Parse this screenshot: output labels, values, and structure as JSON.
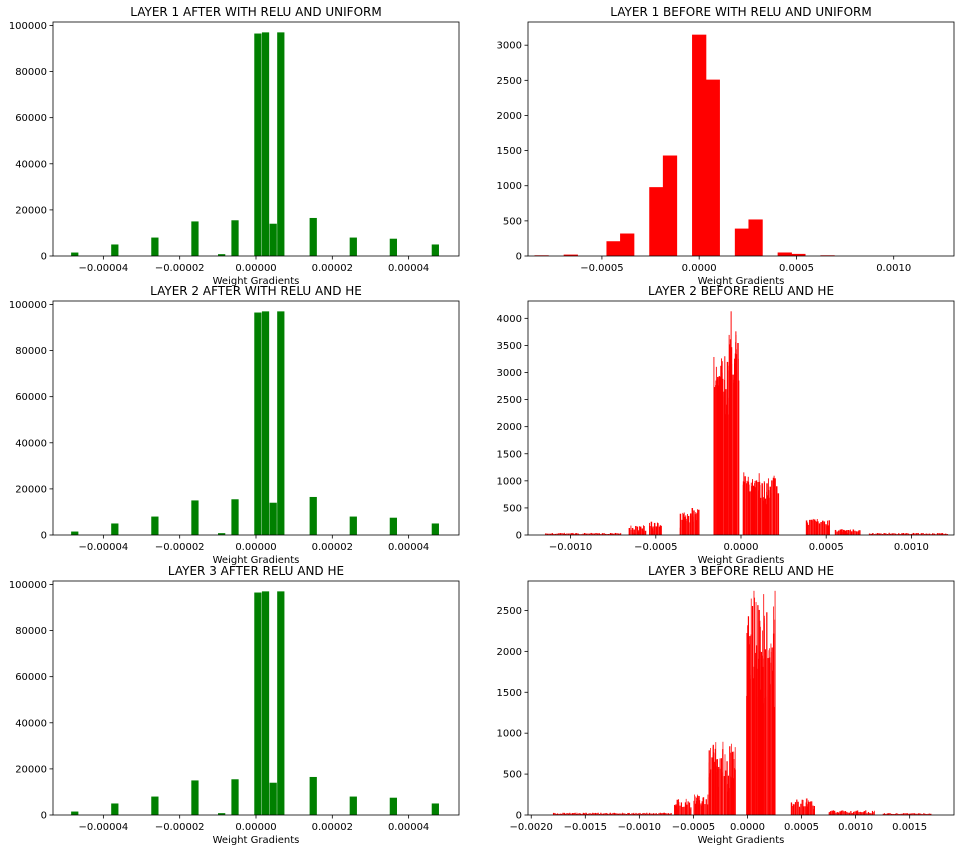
{
  "chart_data": [
    {
      "type": "bar",
      "title": "LAYER 1 AFTER WITH RELU AND UNIFORM",
      "xlabel": "Weight Gradients",
      "ylabel": "",
      "xlim": [
        -5.32e-05,
        5.32e-05
      ],
      "ylim": [
        0,
        101500
      ],
      "xticks": [
        -4e-05,
        -2e-05,
        0.0,
        2e-05,
        4e-05
      ],
      "xtick_labels": [
        "−0.00004",
        "−0.00002",
        "0.00000",
        "0.00002",
        "0.00004"
      ],
      "yticks": [
        0,
        20000,
        40000,
        60000,
        80000,
        100000
      ],
      "ytick_labels": [
        "0",
        "20000",
        "40000",
        "60000",
        "80000",
        "100000"
      ],
      "grid": false,
      "color": "#008000",
      "bin_width": 1.9e-06,
      "bins": [
        {
          "x": -4.75e-05,
          "value": 1500
        },
        {
          "x": -3.7e-05,
          "value": 5000
        },
        {
          "x": -2.65e-05,
          "value": 8000
        },
        {
          "x": -1.6e-05,
          "value": 15000
        },
        {
          "x": -9e-06,
          "value": 800
        },
        {
          "x": -5.5e-06,
          "value": 15500
        },
        {
          "x": 5e-07,
          "value": 96500
        },
        {
          "x": 2.5e-06,
          "value": 97000
        },
        {
          "x": 4.5e-06,
          "value": 14000
        },
        {
          "x": 6.5e-06,
          "value": 97000
        },
        {
          "x": 1.5e-05,
          "value": 16500
        },
        {
          "x": 2.55e-05,
          "value": 8000
        },
        {
          "x": 3.6e-05,
          "value": 7500
        },
        {
          "x": 4.7e-05,
          "value": 5000
        }
      ]
    },
    {
      "type": "bar",
      "title": "LAYER 1 BEFORE WITH RELU AND UNIFORM",
      "xlabel": "Weight Gradients",
      "ylabel": "",
      "xlim": [
        -0.00088,
        0.00131
      ],
      "ylim": [
        0,
        3330
      ],
      "xticks": [
        -0.0005,
        0.0,
        0.0005,
        0.001
      ],
      "xtick_labels": [
        "−0.0005",
        "0.0000",
        "0.0005",
        "0.0010"
      ],
      "yticks": [
        0,
        500,
        1000,
        1500,
        2000,
        2500,
        3000
      ],
      "ytick_labels": [
        "0",
        "500",
        "1000",
        "1500",
        "2000",
        "2500",
        "3000"
      ],
      "grid": false,
      "color": "#ff0000",
      "bin_width": 7.33e-05,
      "bins": [
        {
          "x": -0.00081,
          "value": 10
        },
        {
          "x": -0.00074,
          "value": 0
        },
        {
          "x": -0.00066,
          "value": 20
        },
        {
          "x": -0.00059,
          "value": 0
        },
        {
          "x": -0.00052,
          "value": 0
        },
        {
          "x": -0.00044,
          "value": 210
        },
        {
          "x": -0.00037,
          "value": 320
        },
        {
          "x": -0.0003,
          "value": 0
        },
        {
          "x": -0.00022,
          "value": 980
        },
        {
          "x": -0.00015,
          "value": 1430
        },
        {
          "x": -8e-05,
          "value": 0
        },
        {
          "x": 0.0,
          "value": 3150
        },
        {
          "x": 7e-05,
          "value": 2510
        },
        {
          "x": 0.00015,
          "value": 0
        },
        {
          "x": 0.00022,
          "value": 390
        },
        {
          "x": 0.00029,
          "value": 520
        },
        {
          "x": 0.00037,
          "value": 0
        },
        {
          "x": 0.00044,
          "value": 50
        },
        {
          "x": 0.00051,
          "value": 30
        },
        {
          "x": 0.00059,
          "value": 0
        },
        {
          "x": 0.00066,
          "value": 10
        }
      ]
    },
    {
      "type": "bar",
      "title": "LAYER 2 AFTER WITH RELU AND HE",
      "xlabel": "Weight Gradients",
      "ylabel": "",
      "xlim": [
        -5.32e-05,
        5.32e-05
      ],
      "ylim": [
        0,
        101500
      ],
      "xticks": [
        -4e-05,
        -2e-05,
        0.0,
        2e-05,
        4e-05
      ],
      "xtick_labels": [
        "−0.00004",
        "−0.00002",
        "0.00000",
        "0.00002",
        "0.00004"
      ],
      "yticks": [
        0,
        20000,
        40000,
        60000,
        80000,
        100000
      ],
      "ytick_labels": [
        "0",
        "20000",
        "40000",
        "60000",
        "80000",
        "100000"
      ],
      "grid": false,
      "color": "#008000",
      "bin_width": 1.9e-06,
      "bins": [
        {
          "x": -4.75e-05,
          "value": 1500
        },
        {
          "x": -3.7e-05,
          "value": 5000
        },
        {
          "x": -2.65e-05,
          "value": 8000
        },
        {
          "x": -1.6e-05,
          "value": 15000
        },
        {
          "x": -9e-06,
          "value": 800
        },
        {
          "x": -5.5e-06,
          "value": 15500
        },
        {
          "x": 5e-07,
          "value": 96500
        },
        {
          "x": 2.5e-06,
          "value": 97000
        },
        {
          "x": 4.5e-06,
          "value": 14000
        },
        {
          "x": 6.5e-06,
          "value": 97000
        },
        {
          "x": 1.5e-05,
          "value": 16500
        },
        {
          "x": 2.55e-05,
          "value": 8000
        },
        {
          "x": 3.6e-05,
          "value": 7500
        },
        {
          "x": 4.7e-05,
          "value": 5000
        }
      ]
    },
    {
      "type": "bar",
      "title": "LAYER 2 BEFORE RELU AND HE",
      "xlabel": "Weight Gradients",
      "ylabel": "",
      "xlim": [
        -0.00125,
        0.00125
      ],
      "ylim": [
        0,
        4320
      ],
      "xticks": [
        -0.001,
        -0.0005,
        0.0,
        0.0005,
        0.001
      ],
      "xtick_labels": [
        "−0.0010",
        "−0.0005",
        "0.0000",
        "0.0005",
        "0.0010"
      ],
      "yticks": [
        0,
        500,
        1000,
        1500,
        2000,
        2500,
        3000,
        3500,
        4000
      ],
      "ytick_labels": [
        "0",
        "500",
        "1000",
        "1500",
        "2000",
        "2500",
        "3000",
        "3500",
        "4000"
      ],
      "grid": false,
      "color": "#ff0000",
      "bin_width": 9.5e-06,
      "clusters": [
        {
          "x0": -0.00115,
          "x1": -0.0007,
          "count": 14,
          "min": 0,
          "max": 40,
          "seed": 41
        },
        {
          "x0": -0.00066,
          "x1": -0.00056,
          "count": 10,
          "min": 20,
          "max": 180,
          "seed": 42
        },
        {
          "x0": -0.00054,
          "x1": -0.00046,
          "count": 8,
          "min": 60,
          "max": 260,
          "seed": 43
        },
        {
          "x0": -0.00036,
          "x1": -0.0003,
          "count": 10,
          "min": 120,
          "max": 420,
          "seed": 44
        },
        {
          "x0": -0.0003,
          "x1": -0.00024,
          "count": 8,
          "min": 100,
          "max": 520,
          "seed": 45
        },
        {
          "x0": -0.00016,
          "x1": -7e-05,
          "count": 26,
          "min": 2200,
          "max": 3300,
          "seed": 46
        },
        {
          "x0": -7e-05,
          "x1": -1e-05,
          "count": 18,
          "min": 2300,
          "max": 3700,
          "seed": 47
        },
        {
          "x0": 1e-05,
          "x1": 0.00011,
          "count": 20,
          "min": 550,
          "max": 1200,
          "seed": 48
        },
        {
          "x0": 0.00011,
          "x1": 0.00022,
          "count": 20,
          "min": 350,
          "max": 1150,
          "seed": 49
        },
        {
          "x0": 0.00038,
          "x1": 0.00052,
          "count": 12,
          "min": 40,
          "max": 300,
          "seed": 50
        },
        {
          "x0": 0.00055,
          "x1": 0.0007,
          "count": 10,
          "min": 20,
          "max": 110,
          "seed": 51
        },
        {
          "x0": 0.00075,
          "x1": 0.00122,
          "count": 14,
          "min": 0,
          "max": 40,
          "seed": 52
        }
      ],
      "peaks": [
        {
          "x": -5.8e-05,
          "value": 4130
        },
        {
          "x": -3e-05,
          "value": 3760
        },
        {
          "x": -9.5e-05,
          "value": 3300
        }
      ]
    },
    {
      "type": "bar",
      "title": "LAYER 3 AFTER RELU AND HE",
      "xlabel": "Weight Gradients",
      "ylabel": "",
      "xlim": [
        -5.32e-05,
        5.32e-05
      ],
      "ylim": [
        0,
        101500
      ],
      "xticks": [
        -4e-05,
        -2e-05,
        0.0,
        2e-05,
        4e-05
      ],
      "xtick_labels": [
        "−0.00004",
        "−0.00002",
        "0.00000",
        "0.00002",
        "0.00004"
      ],
      "yticks": [
        0,
        20000,
        40000,
        60000,
        80000,
        100000
      ],
      "ytick_labels": [
        "0",
        "20000",
        "40000",
        "60000",
        "80000",
        "100000"
      ],
      "grid": false,
      "color": "#008000",
      "bin_width": 1.9e-06,
      "bins": [
        {
          "x": -4.75e-05,
          "value": 1500
        },
        {
          "x": -3.7e-05,
          "value": 5000
        },
        {
          "x": -2.65e-05,
          "value": 8000
        },
        {
          "x": -1.6e-05,
          "value": 15000
        },
        {
          "x": -9e-06,
          "value": 800
        },
        {
          "x": -5.5e-06,
          "value": 15500
        },
        {
          "x": 5e-07,
          "value": 96500
        },
        {
          "x": 2.5e-06,
          "value": 97000
        },
        {
          "x": 4.5e-06,
          "value": 14000
        },
        {
          "x": 6.5e-06,
          "value": 97000
        },
        {
          "x": 1.5e-05,
          "value": 16500
        },
        {
          "x": 2.55e-05,
          "value": 8000
        },
        {
          "x": 3.6e-05,
          "value": 7500
        },
        {
          "x": 4.7e-05,
          "value": 5000
        }
      ]
    },
    {
      "type": "bar",
      "title": "LAYER 3 BEFORE RELU AND HE",
      "xlabel": "Weight Gradients",
      "ylabel": "",
      "xlim": [
        -0.00203,
        0.00191
      ],
      "ylim": [
        0,
        2860
      ],
      "xticks": [
        -0.002,
        -0.0015,
        -0.001,
        -0.0005,
        0.0,
        0.0005,
        0.001,
        0.0015
      ],
      "xtick_labels": [
        "−0.0020",
        "−0.0015",
        "−0.0010",
        "−0.0005",
        "0.0000",
        "0.0005",
        "0.0010",
        "0.0015"
      ],
      "yticks": [
        0,
        500,
        1000,
        1500,
        2000,
        2500
      ],
      "ytick_labels": [
        "0",
        "500",
        "1000",
        "1500",
        "2000",
        "2500"
      ],
      "grid": false,
      "color": "#ff0000",
      "bin_width": 1.25e-05,
      "clusters": [
        {
          "x0": -0.0018,
          "x1": -0.0007,
          "count": 14,
          "min": 0,
          "max": 30,
          "seed": 61
        },
        {
          "x0": -0.00068,
          "x1": -0.00052,
          "count": 10,
          "min": 20,
          "max": 200,
          "seed": 62
        },
        {
          "x0": -0.0005,
          "x1": -0.00036,
          "count": 12,
          "min": 60,
          "max": 250,
          "seed": 63
        },
        {
          "x0": -0.00036,
          "x1": -0.00022,
          "count": 22,
          "min": 300,
          "max": 920,
          "seed": 64
        },
        {
          "x0": -0.00022,
          "x1": -0.00011,
          "count": 14,
          "min": 200,
          "max": 880,
          "seed": 65
        },
        {
          "x0": -1e-05,
          "x1": 0.00011,
          "count": 20,
          "min": 1200,
          "max": 2680,
          "seed": 66
        },
        {
          "x0": 0.00011,
          "x1": 0.00026,
          "count": 24,
          "min": 1300,
          "max": 2700,
          "seed": 67
        },
        {
          "x0": 0.0004,
          "x1": 0.00062,
          "count": 14,
          "min": 40,
          "max": 210,
          "seed": 68
        },
        {
          "x0": 0.00075,
          "x1": 0.00118,
          "count": 14,
          "min": 0,
          "max": 60,
          "seed": 69
        },
        {
          "x0": 0.00125,
          "x1": 0.0017,
          "count": 8,
          "min": 0,
          "max": 25,
          "seed": 70
        }
      ],
      "peaks": [
        {
          "x": 6e-05,
          "value": 2740
        },
        {
          "x": 0.000255,
          "value": 2740
        },
        {
          "x": 0.00015,
          "value": 2700
        }
      ]
    }
  ]
}
